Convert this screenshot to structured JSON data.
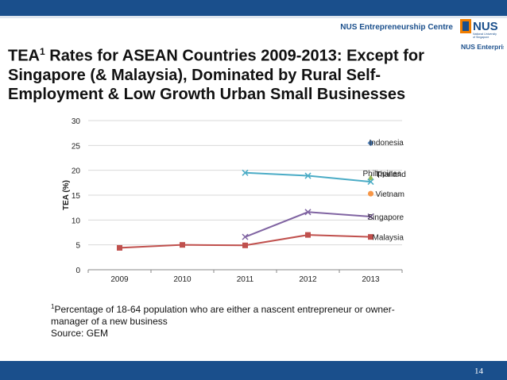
{
  "header": {
    "centre_label": "NUS Entrepreneurship Centre",
    "logo_main": "NUS",
    "logo_sub1": "National University",
    "logo_sub2": "of Singapore",
    "logo_enterprise": "NUS Enterprise"
  },
  "slide": {
    "title_pre": "TEA",
    "title_sup": "1",
    "title_rest": " Rates for ASEAN Countries 2009-2013: Except for Singapore (& Malaysia), Dominated by Rural Self-Employment & Low Growth Urban Small Businesses",
    "footnote_sup": "1",
    "footnote_text": "Percentage of 18-64 population who are either a nascent entrepreneur or owner-manager of a new business",
    "source": "Source: GEM",
    "page_number": "14"
  },
  "colors": {
    "brand_blue": "#1a4f8c",
    "indonesia": "#4a7ebb",
    "philippines": "#9bbb59",
    "thailand": "#4bacc6",
    "vietnam": "#f79646",
    "singapore": "#8064a2",
    "malaysia": "#c0504d"
  },
  "chart_data": {
    "type": "line",
    "ylabel": "TEA (%)",
    "xlabel": "",
    "ylim": [
      0,
      30
    ],
    "yticks": [
      0,
      5,
      10,
      15,
      20,
      25,
      30
    ],
    "categories": [
      "2009",
      "2010",
      "2011",
      "2012",
      "2013"
    ],
    "grid": true,
    "legend": "inline labels at right",
    "series": [
      {
        "name": "Indonesia",
        "values": [
          null,
          null,
          null,
          null,
          25.5
        ],
        "marker": "diamond",
        "color": "#4a7ebb"
      },
      {
        "name": "Philippines",
        "values": [
          null,
          null,
          null,
          null,
          18.5
        ],
        "marker": "triangle",
        "color": "#9bbb59"
      },
      {
        "name": "Thailand",
        "values": [
          null,
          null,
          19.5,
          18.9,
          17.7
        ],
        "marker": "x",
        "color": "#4bacc6"
      },
      {
        "name": "Vietnam",
        "values": [
          null,
          null,
          null,
          null,
          15.3
        ],
        "marker": "circle",
        "color": "#f79646"
      },
      {
        "name": "Singapore",
        "values": [
          null,
          null,
          6.6,
          11.6,
          10.7
        ],
        "marker": "x",
        "color": "#8064a2"
      },
      {
        "name": "Malaysia",
        "values": [
          4.4,
          5.0,
          4.9,
          7.0,
          6.6
        ],
        "marker": "square",
        "color": "#c0504d"
      }
    ]
  }
}
